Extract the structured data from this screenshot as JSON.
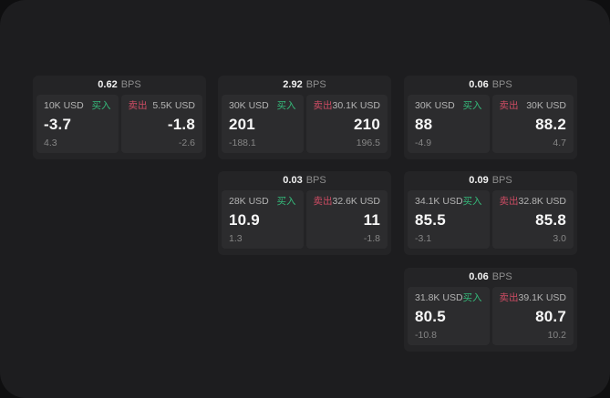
{
  "panel": {
    "bps_unit": "BPS",
    "buy_label": "买入",
    "sell_label": "卖出"
  },
  "colors": {
    "panel_bg": "#1d1d1f",
    "card_bg": "#242426",
    "tile_bg": "#2c2c2e",
    "buy_green": "#35b97a",
    "sell_red": "#cc4b63"
  },
  "cards": [
    {
      "bps": "0.62",
      "grid": {
        "row": 1,
        "col": 1
      },
      "buy": {
        "notional": "10K USD",
        "price": "-3.7",
        "delta": "4.3"
      },
      "sell": {
        "notional": "5.5K USD",
        "price": "-1.8",
        "delta": "-2.6"
      }
    },
    {
      "bps": "2.92",
      "grid": {
        "row": 1,
        "col": 2
      },
      "buy": {
        "notional": "30K USD",
        "price": "201",
        "delta": "-188.1"
      },
      "sell": {
        "notional": "30.1K USD",
        "price": "210",
        "delta": "196.5"
      }
    },
    {
      "bps": "0.06",
      "grid": {
        "row": 1,
        "col": 3
      },
      "buy": {
        "notional": "30K USD",
        "price": "88",
        "delta": "-4.9"
      },
      "sell": {
        "notional": "30K USD",
        "price": "88.2",
        "delta": "4.7"
      }
    },
    {
      "bps": "0.03",
      "grid": {
        "row": 2,
        "col": 2
      },
      "buy": {
        "notional": "28K USD",
        "price": "10.9",
        "delta": "1.3"
      },
      "sell": {
        "notional": "32.6K USD",
        "price": "11",
        "delta": "-1.8"
      }
    },
    {
      "bps": "0.09",
      "grid": {
        "row": 2,
        "col": 3
      },
      "buy": {
        "notional": "34.1K USD",
        "price": "85.5",
        "delta": "-3.1"
      },
      "sell": {
        "notional": "32.8K USD",
        "price": "85.8",
        "delta": "3.0"
      }
    },
    {
      "bps": "0.06",
      "grid": {
        "row": 3,
        "col": 3
      },
      "buy": {
        "notional": "31.8K USD",
        "price": "80.5",
        "delta": "-10.8"
      },
      "sell": {
        "notional": "39.1K USD",
        "price": "80.7",
        "delta": "10.2"
      }
    }
  ]
}
